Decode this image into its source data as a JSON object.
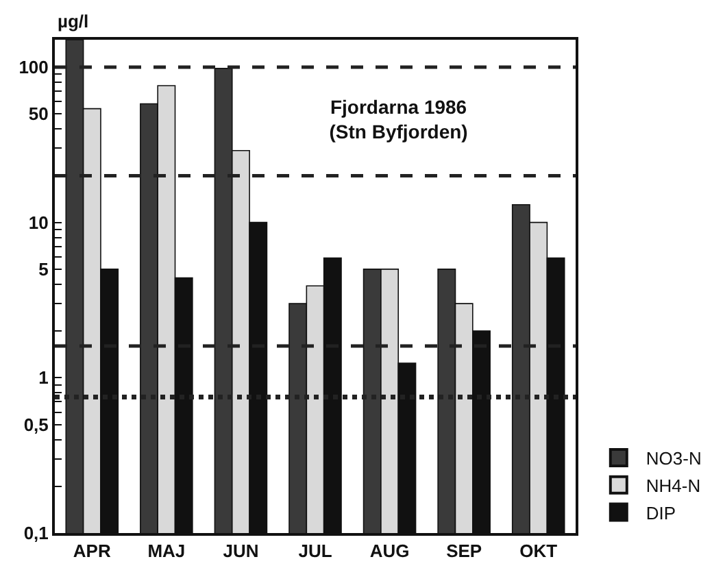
{
  "chart_data": {
    "type": "bar",
    "title": "Fjordarna 1986\n(Stn Byfjorden)",
    "ylabel": "µg/l",
    "categories": [
      "APR",
      "MAJ",
      "JUN",
      "JUL",
      "AUG",
      "SEP",
      "OKT"
    ],
    "series": [
      {
        "name": "NO3-N",
        "color": "#3a3a3a",
        "values": [
          150,
          58,
          98,
          3.0,
          5,
          5,
          13
        ]
      },
      {
        "name": "NH4-N",
        "color": "#d9d9d9",
        "values": [
          54,
          76,
          29,
          3.9,
          5,
          3.0,
          10
        ]
      },
      {
        "name": "DIP",
        "color": "#111111",
        "values": [
          5,
          4.4,
          10,
          5.9,
          1.24,
          2.0,
          5.9
        ]
      }
    ],
    "log": true,
    "ylim": [
      0.1,
      150
    ],
    "yticks": [
      {
        "value": 0.1,
        "label": "0,1"
      },
      {
        "value": 0.2,
        "label": null
      },
      {
        "value": 0.3,
        "label": null
      },
      {
        "value": 0.4,
        "label": null
      },
      {
        "value": 0.5,
        "label": "0,5"
      },
      {
        "value": 0.6,
        "label": null
      },
      {
        "value": 0.7,
        "label": null
      },
      {
        "value": 0.8,
        "label": null
      },
      {
        "value": 0.9,
        "label": null
      },
      1,
      {
        "value": 2,
        "label": null
      },
      {
        "value": 3,
        "label": null
      },
      {
        "value": 4,
        "label": null
      },
      5,
      {
        "value": 6,
        "label": null
      },
      {
        "value": 7,
        "label": null
      },
      {
        "value": 8,
        "label": null
      },
      {
        "value": 9,
        "label": null
      },
      10,
      {
        "value": 20,
        "label": null
      },
      {
        "value": 30,
        "label": null
      },
      {
        "value": 40,
        "label": null
      },
      50,
      {
        "value": 60,
        "label": null
      },
      {
        "value": 70,
        "label": null
      },
      {
        "value": 80,
        "label": null
      },
      {
        "value": 90,
        "label": null
      },
      100
    ],
    "ref_lines": [
      {
        "axis": "y",
        "value": 100,
        "line_style": "dashed",
        "color": "#222222"
      },
      {
        "axis": "y",
        "value": 20,
        "line_style": "dashed",
        "color": "#222222"
      },
      {
        "axis": "y",
        "value": 1.6,
        "line_style": "dashed",
        "color": "#222222"
      },
      {
        "axis": "y",
        "value": 0.75,
        "line_style": "dotted",
        "color": "#222222"
      }
    ],
    "grid": false,
    "legend": "bottom right"
  }
}
